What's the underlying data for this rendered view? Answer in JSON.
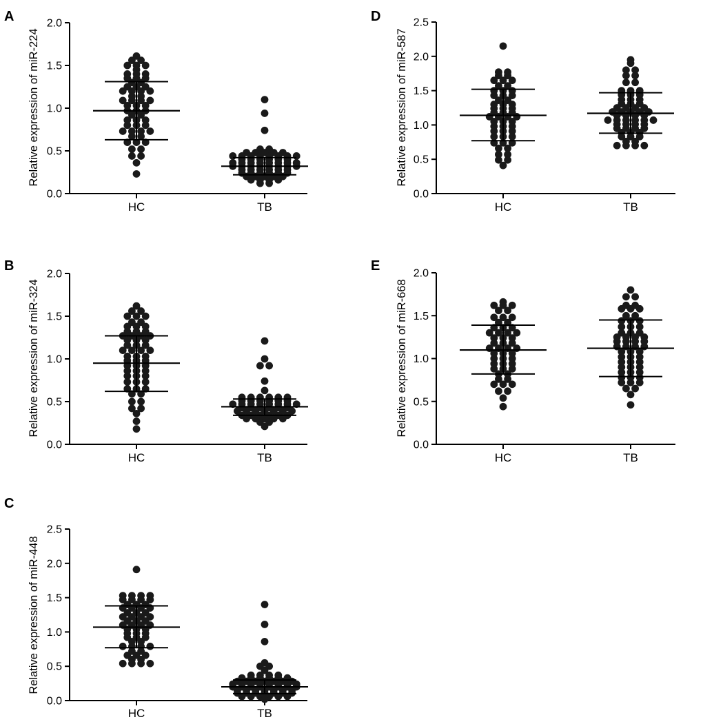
{
  "chart_data": [
    {
      "panel": "A",
      "type": "scatter",
      "ylabel": "Relative expression of miR-224",
      "categories": [
        "HC",
        "TB"
      ],
      "ylim": [
        0,
        2.0
      ],
      "yticks": [
        "0.0",
        "0.5",
        "1.0",
        "1.5",
        "2.0"
      ],
      "groups": [
        {
          "name": "HC",
          "mean": 0.97,
          "sd_low": 0.63,
          "sd_high": 1.31,
          "rows": [
            [
              1.61
            ],
            [
              1.56,
              1.56
            ],
            [
              1.5,
              1.5,
              1.5
            ],
            [
              1.45
            ],
            [
              1.4,
              1.4,
              1.4
            ],
            [
              1.35,
              1.35,
              1.35
            ],
            [
              1.3,
              1.3
            ],
            [
              1.25,
              1.25,
              1.25
            ],
            [
              1.2,
              1.2,
              1.2,
              1.2
            ],
            [
              1.14,
              1.14
            ],
            [
              1.09,
              1.09,
              1.09,
              1.09
            ],
            [
              1.03,
              1.03,
              1.03
            ],
            [
              0.97,
              0.97,
              0.97
            ],
            [
              0.92,
              0.92
            ],
            [
              0.86,
              0.86,
              0.86
            ],
            [
              0.8,
              0.8,
              0.8
            ],
            [
              0.73,
              0.73,
              0.73,
              0.73
            ],
            [
              0.67,
              0.67
            ],
            [
              0.6,
              0.6,
              0.6
            ],
            [
              0.52,
              0.52
            ],
            [
              0.44,
              0.44
            ],
            [
              0.36
            ],
            [
              0.23
            ]
          ]
        },
        {
          "name": "TB",
          "mean": 0.32,
          "sd_low": 0.22,
          "sd_high": 0.42,
          "rows": [
            [
              1.1
            ],
            [
              0.94
            ],
            [
              0.74
            ],
            [
              0.52,
              0.52
            ],
            [
              0.48,
              0.48,
              0.48,
              0.48,
              0.48
            ],
            [
              0.44,
              0.44,
              0.44,
              0.44,
              0.44,
              0.44,
              0.44,
              0.44
            ],
            [
              0.4,
              0.4,
              0.4,
              0.4,
              0.4,
              0.4
            ],
            [
              0.36,
              0.36,
              0.36,
              0.36,
              0.36,
              0.36,
              0.36,
              0.36
            ],
            [
              0.32,
              0.32,
              0.32,
              0.32,
              0.32,
              0.32,
              0.32,
              0.32
            ],
            [
              0.28,
              0.28,
              0.28,
              0.28,
              0.28,
              0.28
            ],
            [
              0.24,
              0.24,
              0.24,
              0.24,
              0.24,
              0.24
            ],
            [
              0.2,
              0.2,
              0.2,
              0.2,
              0.2
            ],
            [
              0.16,
              0.16,
              0.16,
              0.16
            ],
            [
              0.12,
              0.12
            ]
          ]
        }
      ]
    },
    {
      "panel": "B",
      "type": "scatter",
      "ylabel": "Relative expression of miR-324",
      "categories": [
        "HC",
        "TB"
      ],
      "ylim": [
        0,
        2.0
      ],
      "yticks": [
        "0.0",
        "0.5",
        "1.0",
        "1.5",
        "2.0"
      ],
      "groups": [
        {
          "name": "HC",
          "mean": 0.95,
          "sd_low": 0.62,
          "sd_high": 1.27,
          "rows": [
            [
              1.62
            ],
            [
              1.56,
              1.56
            ],
            [
              1.5,
              1.5,
              1.5
            ],
            [
              1.43,
              1.43
            ],
            [
              1.38,
              1.38,
              1.38
            ],
            [
              1.32,
              1.32,
              1.32
            ],
            [
              1.27,
              1.27,
              1.27,
              1.27
            ],
            [
              1.22,
              1.22,
              1.22
            ],
            [
              1.16,
              1.16,
              1.16
            ],
            [
              1.1,
              1.1,
              1.1,
              1.1
            ],
            [
              1.03,
              1.03,
              1.03
            ],
            [
              0.98,
              0.98,
              0.98
            ],
            [
              0.92,
              0.92,
              0.92
            ],
            [
              0.86,
              0.86,
              0.86
            ],
            [
              0.8,
              0.8,
              0.8
            ],
            [
              0.73,
              0.73,
              0.73
            ],
            [
              0.65,
              0.65,
              0.65
            ],
            [
              0.59,
              0.59
            ],
            [
              0.5,
              0.5
            ],
            [
              0.42,
              0.42
            ],
            [
              0.36
            ],
            [
              0.27
            ],
            [
              0.18
            ]
          ]
        },
        {
          "name": "TB",
          "mean": 0.44,
          "sd_low": 0.34,
          "sd_high": 0.53,
          "rows": [
            [
              1.21
            ],
            [
              1.0
            ],
            [
              0.92,
              0.92
            ],
            [
              0.74
            ],
            [
              0.63
            ],
            [
              0.55,
              0.55,
              0.55,
              0.55,
              0.55,
              0.55
            ],
            [
              0.51,
              0.51,
              0.51,
              0.51,
              0.51,
              0.51
            ],
            [
              0.47,
              0.47,
              0.47,
              0.47,
              0.47,
              0.47,
              0.47,
              0.47
            ],
            [
              0.43,
              0.43,
              0.43,
              0.43,
              0.43,
              0.43
            ],
            [
              0.39,
              0.39,
              0.39,
              0.39,
              0.39,
              0.39,
              0.39
            ],
            [
              0.34,
              0.34,
              0.34,
              0.34,
              0.34,
              0.34
            ],
            [
              0.3,
              0.3,
              0.3,
              0.3,
              0.3
            ],
            [
              0.26,
              0.26
            ],
            [
              0.21
            ]
          ]
        }
      ]
    },
    {
      "panel": "C",
      "type": "scatter",
      "ylabel": "Relative expression of miR-448",
      "categories": [
        "HC",
        "TB"
      ],
      "ylim": [
        0,
        2.5
      ],
      "yticks": [
        "0.0",
        "0.5",
        "1.0",
        "1.5",
        "2.0",
        "2.5"
      ],
      "groups": [
        {
          "name": "HC",
          "mean": 1.07,
          "sd_low": 0.77,
          "sd_high": 1.38,
          "rows": [
            [
              1.91
            ],
            [
              1.53,
              1.53,
              1.53,
              1.53
            ],
            [
              1.47,
              1.47,
              1.47,
              1.47
            ],
            [
              1.4,
              1.4,
              1.4
            ],
            [
              1.35,
              1.35,
              1.35,
              1.35
            ],
            [
              1.28,
              1.28,
              1.28
            ],
            [
              1.22,
              1.22,
              1.22,
              1.22
            ],
            [
              1.16,
              1.16,
              1.16
            ],
            [
              1.1,
              1.1,
              1.1,
              1.1
            ],
            [
              1.04,
              1.04,
              1.04
            ],
            [
              0.98,
              0.98,
              0.98
            ],
            [
              0.92,
              0.92,
              0.92
            ],
            [
              0.86,
              0.86
            ],
            [
              0.79,
              0.79,
              0.79,
              0.79
            ],
            [
              0.72,
              0.72
            ],
            [
              0.66,
              0.66,
              0.66
            ],
            [
              0.6,
              0.6
            ],
            [
              0.54,
              0.54,
              0.54,
              0.54
            ]
          ]
        },
        {
          "name": "TB",
          "mean": 0.2,
          "sd_low": 0.1,
          "sd_high": 0.3,
          "rows": [
            [
              1.4
            ],
            [
              1.11
            ],
            [
              0.86
            ],
            [
              0.55
            ],
            [
              0.5,
              0.5
            ],
            [
              0.44
            ],
            [
              0.37,
              0.37,
              0.37,
              0.37
            ],
            [
              0.33,
              0.33,
              0.33,
              0.33,
              0.33,
              0.33
            ],
            [
              0.28,
              0.28,
              0.28,
              0.28,
              0.28,
              0.28,
              0.28
            ],
            [
              0.24,
              0.24,
              0.24,
              0.24,
              0.24,
              0.24,
              0.24,
              0.24
            ],
            [
              0.2,
              0.2,
              0.2,
              0.2,
              0.2,
              0.2,
              0.2,
              0.2
            ],
            [
              0.15,
              0.15,
              0.15,
              0.15,
              0.15,
              0.15,
              0.15
            ],
            [
              0.11,
              0.11,
              0.11,
              0.11,
              0.11,
              0.11,
              0.11
            ],
            [
              0.06,
              0.06,
              0.06,
              0.06,
              0.06,
              0.06
            ],
            [
              0.02
            ]
          ]
        }
      ]
    },
    {
      "panel": "D",
      "type": "scatter",
      "ylabel": "Relative expression of miR-587",
      "categories": [
        "HC",
        "TB"
      ],
      "ylim": [
        0,
        2.5
      ],
      "yticks": [
        "0.0",
        "0.5",
        "1.0",
        "1.5",
        "2.0",
        "2.5"
      ],
      "groups": [
        {
          "name": "HC",
          "mean": 1.14,
          "sd_low": 0.77,
          "sd_high": 1.52,
          "rows": [
            [
              2.15
            ],
            [
              1.77,
              1.77
            ],
            [
              1.72,
              1.72
            ],
            [
              1.65,
              1.65,
              1.65
            ],
            [
              1.57,
              1.57
            ],
            [
              1.5,
              1.5,
              1.5
            ],
            [
              1.43,
              1.43,
              1.43
            ],
            [
              1.36,
              1.36
            ],
            [
              1.3,
              1.3,
              1.3
            ],
            [
              1.24,
              1.24,
              1.24
            ],
            [
              1.18,
              1.18,
              1.18
            ],
            [
              1.12,
              1.12,
              1.12,
              1.12
            ],
            [
              1.05,
              1.05,
              1.05
            ],
            [
              0.98,
              0.98,
              0.98
            ],
            [
              0.91,
              0.91,
              0.91
            ],
            [
              0.83,
              0.83,
              0.83
            ],
            [
              0.74,
              0.74,
              0.74
            ],
            [
              0.66,
              0.66
            ],
            [
              0.57,
              0.57
            ],
            [
              0.49,
              0.49
            ],
            [
              0.41
            ]
          ]
        },
        {
          "name": "TB",
          "mean": 1.17,
          "sd_low": 0.88,
          "sd_high": 1.47,
          "rows": [
            [
              1.95
            ],
            [
              1.9
            ],
            [
              1.8,
              1.8
            ],
            [
              1.72,
              1.72
            ],
            [
              1.62,
              1.62
            ],
            [
              1.5,
              1.5,
              1.5
            ],
            [
              1.44,
              1.44,
              1.44
            ],
            [
              1.37,
              1.37,
              1.37
            ],
            [
              1.31,
              1.31,
              1.31
            ],
            [
              1.25,
              1.25,
              1.25,
              1.25
            ],
            [
              1.19,
              1.19,
              1.19,
              1.19,
              1.19
            ],
            [
              1.14,
              1.14,
              1.14,
              1.14
            ],
            [
              1.07,
              1.07,
              1.07,
              1.07,
              1.07,
              1.07
            ],
            [
              1.01,
              1.01,
              1.01,
              1.01
            ],
            [
              0.95,
              0.95,
              0.95,
              0.95
            ],
            [
              0.89,
              0.89,
              0.89
            ],
            [
              0.83,
              0.83,
              0.83
            ],
            [
              0.76,
              0.76
            ],
            [
              0.7,
              0.7,
              0.7,
              0.7
            ]
          ]
        }
      ]
    },
    {
      "panel": "E",
      "type": "scatter",
      "ylabel": "Relative expression of miR-668",
      "categories": [
        "HC",
        "TB"
      ],
      "ylim": [
        0,
        2.0
      ],
      "yticks": [
        "0.0",
        "0.5",
        "1.0",
        "1.5",
        "2.0"
      ],
      "groups": [
        {
          "name": "HC",
          "mean": 1.1,
          "sd_low": 0.82,
          "sd_high": 1.39,
          "rows": [
            [
              1.66
            ],
            [
              1.62,
              1.62,
              1.62
            ],
            [
              1.56,
              1.56
            ],
            [
              1.48,
              1.48,
              1.48
            ],
            [
              1.42,
              1.42
            ],
            [
              1.36,
              1.36,
              1.36
            ],
            [
              1.3,
              1.3,
              1.3,
              1.3
            ],
            [
              1.24,
              1.24,
              1.24
            ],
            [
              1.18,
              1.18,
              1.18
            ],
            [
              1.12,
              1.12,
              1.12,
              1.12
            ],
            [
              1.06,
              1.06,
              1.06
            ],
            [
              1.0,
              1.0,
              1.0
            ],
            [
              0.94,
              0.94,
              0.94
            ],
            [
              0.88,
              0.88,
              0.88
            ],
            [
              0.82,
              0.82
            ],
            [
              0.76,
              0.76
            ],
            [
              0.7,
              0.7,
              0.7
            ],
            [
              0.62,
              0.62
            ],
            [
              0.54
            ],
            [
              0.44
            ]
          ]
        },
        {
          "name": "TB",
          "mean": 1.12,
          "sd_low": 0.79,
          "sd_high": 1.45,
          "rows": [
            [
              1.8
            ],
            [
              1.72,
              1.72
            ],
            [
              1.62,
              1.62
            ],
            [
              1.58,
              1.58,
              1.58
            ],
            [
              1.5,
              1.5
            ],
            [
              1.44,
              1.44,
              1.44
            ],
            [
              1.37,
              1.37,
              1.37
            ],
            [
              1.3,
              1.3,
              1.3
            ],
            [
              1.25,
              1.25,
              1.25,
              1.25
            ],
            [
              1.2,
              1.2,
              1.2,
              1.2
            ],
            [
              1.14,
              1.14,
              1.14,
              1.14
            ],
            [
              1.08,
              1.08,
              1.08
            ],
            [
              1.02,
              1.02,
              1.02
            ],
            [
              0.96,
              0.96,
              0.96
            ],
            [
              0.9,
              0.9,
              0.9
            ],
            [
              0.84,
              0.84,
              0.84
            ],
            [
              0.78,
              0.78,
              0.78
            ],
            [
              0.72,
              0.72,
              0.72
            ],
            [
              0.65,
              0.65
            ],
            [
              0.58
            ],
            [
              0.46
            ]
          ]
        }
      ]
    }
  ],
  "colors": {
    "marker": "#1a1a1a",
    "axis": "#000000",
    "background": "#ffffff"
  }
}
